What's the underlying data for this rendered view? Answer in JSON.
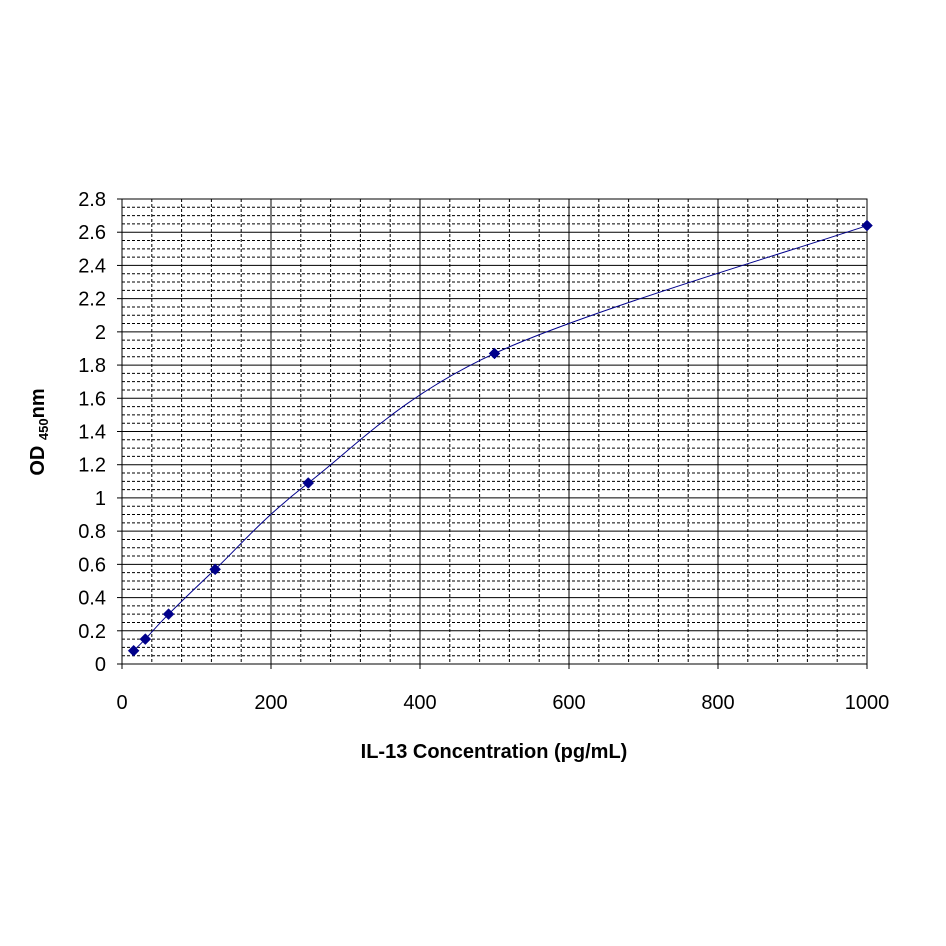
{
  "chart_data": {
    "type": "scatter",
    "title": "",
    "xlabel": "IL-13 Concentration (pg/mL)",
    "ylabel": {
      "main": "OD ",
      "sub": "450",
      "tail": "nm"
    },
    "xlim": [
      0,
      1000
    ],
    "ylim": [
      0,
      2.8
    ],
    "x_ticks": [
      0,
      200,
      400,
      600,
      800,
      1000
    ],
    "y_ticks": [
      0,
      0.2,
      0.4,
      0.6,
      0.8,
      1,
      1.2,
      1.4,
      1.6,
      1.8,
      2,
      2.2,
      2.4,
      2.6,
      2.8
    ],
    "grid": true,
    "minor_grid": "dashed",
    "marker": "diamond",
    "line": "smooth",
    "color": "#00008b",
    "series": [
      {
        "x": [
          15.6,
          31.3,
          62.5,
          125,
          250,
          500,
          1000
        ],
        "y": [
          0.08,
          0.15,
          0.3,
          0.57,
          1.09,
          1.87,
          2.64
        ]
      }
    ]
  }
}
